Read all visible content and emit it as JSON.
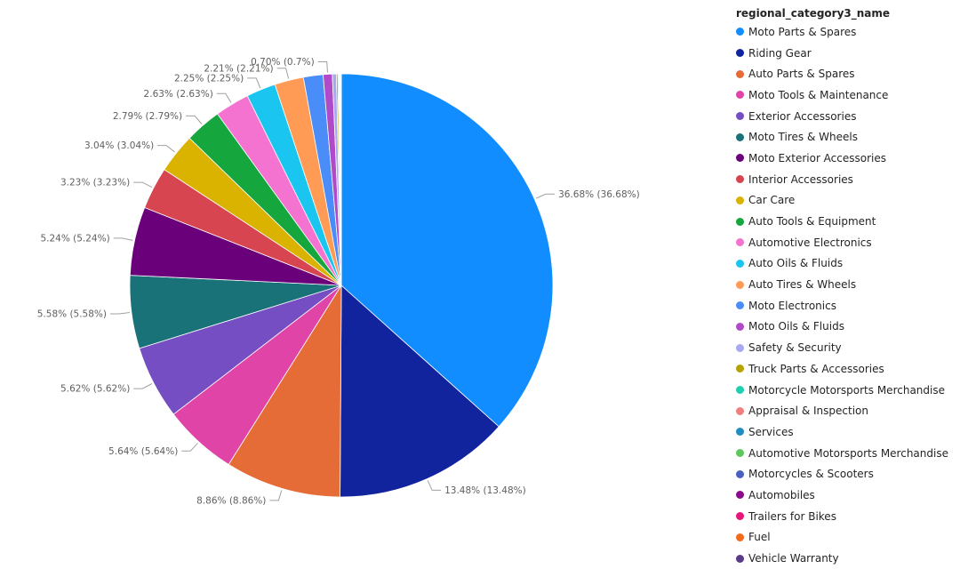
{
  "chart_data": {
    "type": "pie",
    "legend_title": "regional_category3_name",
    "legend_position": "right",
    "slices": [
      {
        "name": "Moto Parts & Spares",
        "value": 36.68,
        "label": "36.68% (36.68%)",
        "color": "#118DFF"
      },
      {
        "name": "Riding Gear",
        "value": 13.48,
        "label": "13.48% (13.48%)",
        "color": "#12239E"
      },
      {
        "name": "Auto Parts & Spares",
        "value": 8.86,
        "label": "8.86% (8.86%)",
        "color": "#E66C37"
      },
      {
        "name": "Moto Tools & Maintenance",
        "value": 5.64,
        "label": "5.64% (5.64%)",
        "color": "#E044A7"
      },
      {
        "name": "Exterior Accessories",
        "value": 5.62,
        "label": "5.62% (5.62%)",
        "color": "#744EC2"
      },
      {
        "name": "Moto Tires & Wheels",
        "value": 5.58,
        "label": "5.58% (5.58%)",
        "color": "#197278"
      },
      {
        "name": "Moto Exterior Accessories",
        "value": 5.24,
        "label": "5.24% (5.24%)",
        "color": "#6B007B"
      },
      {
        "name": "Interior Accessories",
        "value": 3.23,
        "label": "3.23% (3.23%)",
        "color": "#D64550"
      },
      {
        "name": "Car Care",
        "value": 3.04,
        "label": "3.04% (3.04%)",
        "color": "#D9B300"
      },
      {
        "name": "Auto Tools & Equipment",
        "value": 2.79,
        "label": "2.79% (2.79%)",
        "color": "#15A63E"
      },
      {
        "name": "Automotive Electronics",
        "value": 2.63,
        "label": "2.63% (2.63%)",
        "color": "#F472D0"
      },
      {
        "name": "Auto Oils & Fluids",
        "value": 2.25,
        "label": "2.25% (2.25%)",
        "color": "#1AC5F0"
      },
      {
        "name": "Auto Tires & Wheels",
        "value": 2.21,
        "label": "2.21% (2.21%)",
        "color": "#FF9B55"
      },
      {
        "name": "Moto Electronics",
        "value": 1.5,
        "label": "",
        "color": "#4A8DF8"
      },
      {
        "name": "Moto Oils & Fluids",
        "value": 0.7,
        "label": "0.70% (0.7%)",
        "color": "#B04AC8"
      },
      {
        "name": "Safety & Security",
        "value": 0.3,
        "label": "",
        "color": "#A8A8F0"
      },
      {
        "name": "Truck Parts & Accessories",
        "value": 0.12,
        "label": "",
        "color": "#B8A200"
      },
      {
        "name": "Motorcycle Motorsports Merchandise",
        "value": 0.07,
        "label": "",
        "color": "#1FCFB0"
      },
      {
        "name": "Appraisal & Inspection",
        "value": 0.05,
        "label": "",
        "color": "#F08080"
      },
      {
        "name": "Services",
        "value": 0.04,
        "label": "",
        "color": "#1F8DC2"
      },
      {
        "name": "Automotive Motorsports Merchandise",
        "value": 0.03,
        "label": "",
        "color": "#5CC85C"
      },
      {
        "name": "Motorcycles & Scooters",
        "value": 0.02,
        "label": "",
        "color": "#4A5FC0"
      },
      {
        "name": "Automobiles",
        "value": 0.02,
        "label": "",
        "color": "#8B0A8B"
      },
      {
        "name": "Trailers for Bikes",
        "value": 0.01,
        "label": "",
        "color": "#E8147A"
      },
      {
        "name": "Fuel",
        "value": 0.01,
        "label": "",
        "color": "#F26B1D"
      },
      {
        "name": "Vehicle Warranty",
        "value": 0.01,
        "label": "",
        "color": "#5C3A8A"
      }
    ]
  }
}
